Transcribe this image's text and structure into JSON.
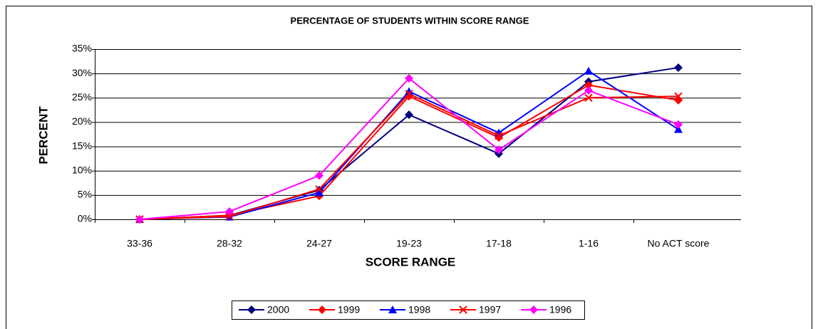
{
  "chart_data": {
    "type": "line",
    "title": "PERCENTAGE OF STUDENTS WITHIN SCORE RANGE",
    "x_label": "SCORE RANGE",
    "y_label": "PERCENT",
    "categories": [
      "33-36",
      "28-32",
      "24-27",
      "19-23",
      "17-18",
      "1-16",
      "No ACT score"
    ],
    "series": [
      {
        "name": "2000",
        "color": "#000080",
        "marker": "diamond",
        "values": [
          0,
          0.8,
          6,
          21.5,
          13.5,
          28.3,
          31.2
        ]
      },
      {
        "name": "1999",
        "color": "#ff0000",
        "marker": "diamond",
        "values": [
          0,
          0.8,
          4.8,
          25.3,
          16.8,
          27.6,
          24.5
        ]
      },
      {
        "name": "1998",
        "color": "#0000ff",
        "marker": "triangle",
        "values": [
          0,
          0.5,
          5.5,
          26.3,
          17.8,
          30.5,
          18.5
        ]
      },
      {
        "name": "1997",
        "color": "#ff0000",
        "marker": "x",
        "values": [
          0,
          0.6,
          6.2,
          25.8,
          17.2,
          25.0,
          25.3
        ]
      },
      {
        "name": "1996",
        "color": "#ff00ff",
        "marker": "diamond",
        "values": [
          0,
          1.6,
          9,
          29,
          14.3,
          26.5,
          19.5
        ]
      }
    ],
    "ylim": [
      0,
      35
    ],
    "yticks": [
      {
        "value": 0,
        "label": "0%"
      },
      {
        "value": 5,
        "label": "5%"
      },
      {
        "value": 10,
        "label": "10%"
      },
      {
        "value": 15,
        "label": "15%"
      },
      {
        "value": 20,
        "label": "20%"
      },
      {
        "value": 25,
        "label": "25%"
      },
      {
        "value": 30,
        "label": "30%"
      },
      {
        "value": 35,
        "label": "35%"
      }
    ],
    "grid": true,
    "legend": "bottom"
  }
}
